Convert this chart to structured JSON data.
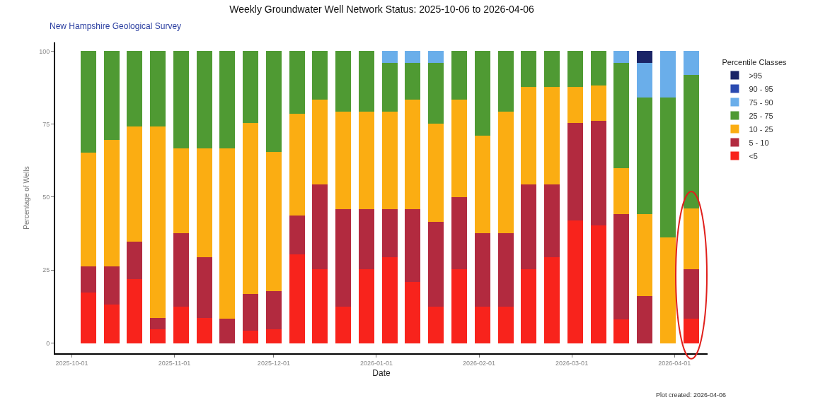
{
  "chart_data": {
    "type": "bar",
    "stacked": true,
    "title": "Weekly Groundwater Well Network Status: 2025-10-06 to 2026-04-06",
    "subtitle": "New Hampshire Geological Survey",
    "xlabel": "Date",
    "ylabel": "Percentage of Wells",
    "legend_title": "Percentile Classes",
    "legend": "right",
    "grid": false,
    "x": [
      "2025-10-06",
      "2025-10-13",
      "2025-10-20",
      "2025-10-27",
      "2025-11-03",
      "2025-11-10",
      "2025-11-17",
      "2025-11-24",
      "2025-12-01",
      "2025-12-08",
      "2025-12-15",
      "2025-12-22",
      "2025-12-29",
      "2026-01-05",
      "2026-01-12",
      "2026-01-19",
      "2026-01-26",
      "2026-02-02",
      "2026-02-09",
      "2026-02-16",
      "2026-02-23",
      "2026-03-02",
      "2026-03-09",
      "2026-03-16",
      "2026-03-23",
      "2026-03-30",
      "2026-04-06"
    ],
    "xlim": [
      "2025-09-26",
      "2026-04-11"
    ],
    "xticks": [
      {
        "value": "2025-10-01",
        "label": "2025-10-01"
      },
      {
        "value": "2025-11-01",
        "label": "2025-11-01"
      },
      {
        "value": "2025-12-01",
        "label": "2025-12-01"
      },
      {
        "value": "2026-01-01",
        "label": "2026-01-01"
      },
      {
        "value": "2026-02-01",
        "label": "2026-02-01"
      },
      {
        "value": "2026-03-01",
        "label": "2026-03-01"
      },
      {
        "value": "2026-04-01",
        "label": "2026-04-01"
      }
    ],
    "ylim": [
      -3.5,
      103
    ],
    "yticks": [
      0,
      25,
      50,
      75,
      100
    ],
    "series": [
      {
        "name": "<5",
        "color": "#f8231c",
        "values": [
          17.4,
          13.2,
          22.0,
          4.7,
          12.5,
          8.6,
          0,
          4.2,
          4.7,
          30.5,
          25.3,
          12.5,
          25.3,
          29.3,
          21.0,
          12.5,
          25.3,
          12.5,
          12.5,
          25.3,
          29.3,
          42.0,
          40.4,
          8.1,
          0,
          0,
          8.3
        ]
      },
      {
        "name": "5 - 10",
        "color": "#b22a3f",
        "values": [
          8.8,
          13.0,
          12.7,
          4.0,
          25.1,
          20.7,
          8.3,
          12.6,
          13.0,
          13.1,
          29.0,
          33.3,
          20.5,
          16.5,
          24.8,
          29.1,
          24.7,
          25.1,
          25.1,
          29.0,
          25.0,
          33.3,
          35.7,
          36.1,
          16.1,
          0,
          17.0
        ]
      },
      {
        "name": "10 - 25",
        "color": "#fbad12",
        "values": [
          39.0,
          43.5,
          39.4,
          65.4,
          29.2,
          37.5,
          58.5,
          58.5,
          47.7,
          34.9,
          29.2,
          33.5,
          33.5,
          33.5,
          37.7,
          33.5,
          33.5,
          33.4,
          41.7,
          33.5,
          33.5,
          12.5,
          12.1,
          15.8,
          28.1,
          36.1,
          20.7
        ]
      },
      {
        "name": "25 - 75",
        "color": "#4f9a33",
        "values": [
          34.8,
          30.3,
          25.9,
          25.9,
          33.2,
          33.2,
          33.2,
          24.7,
          34.6,
          21.5,
          16.5,
          20.7,
          20.7,
          16.7,
          12.5,
          20.9,
          16.5,
          29.0,
          20.7,
          12.2,
          12.2,
          12.2,
          11.8,
          36.0,
          40.0,
          48.1,
          45.8
        ]
      },
      {
        "name": "75 - 90",
        "color": "#6aaeea",
        "values": [
          0,
          0,
          0,
          0,
          0,
          0,
          0,
          0,
          0,
          0,
          0,
          0,
          0,
          4.0,
          4.0,
          4.0,
          0,
          0,
          0,
          0,
          0,
          0,
          0,
          4.0,
          11.8,
          15.8,
          8.2
        ]
      },
      {
        "name": "90 - 95",
        "color": "#2a4ab0",
        "values": [
          0,
          0,
          0,
          0,
          0,
          0,
          0,
          0,
          0,
          0,
          0,
          0,
          0,
          0,
          0,
          0,
          0,
          0,
          0,
          0,
          0,
          0,
          0,
          0,
          0,
          0,
          0
        ]
      },
      {
        "name": ">95",
        "color": "#1a2466",
        "values": [
          0,
          0,
          0,
          0,
          0,
          0,
          0,
          0,
          0,
          0,
          0,
          0,
          0,
          0,
          0,
          0,
          0,
          0,
          0,
          0,
          0,
          0,
          0,
          0,
          4.0,
          0,
          0
        ]
      }
    ],
    "annotations": [
      "Plot created: 2026-04-06"
    ]
  }
}
